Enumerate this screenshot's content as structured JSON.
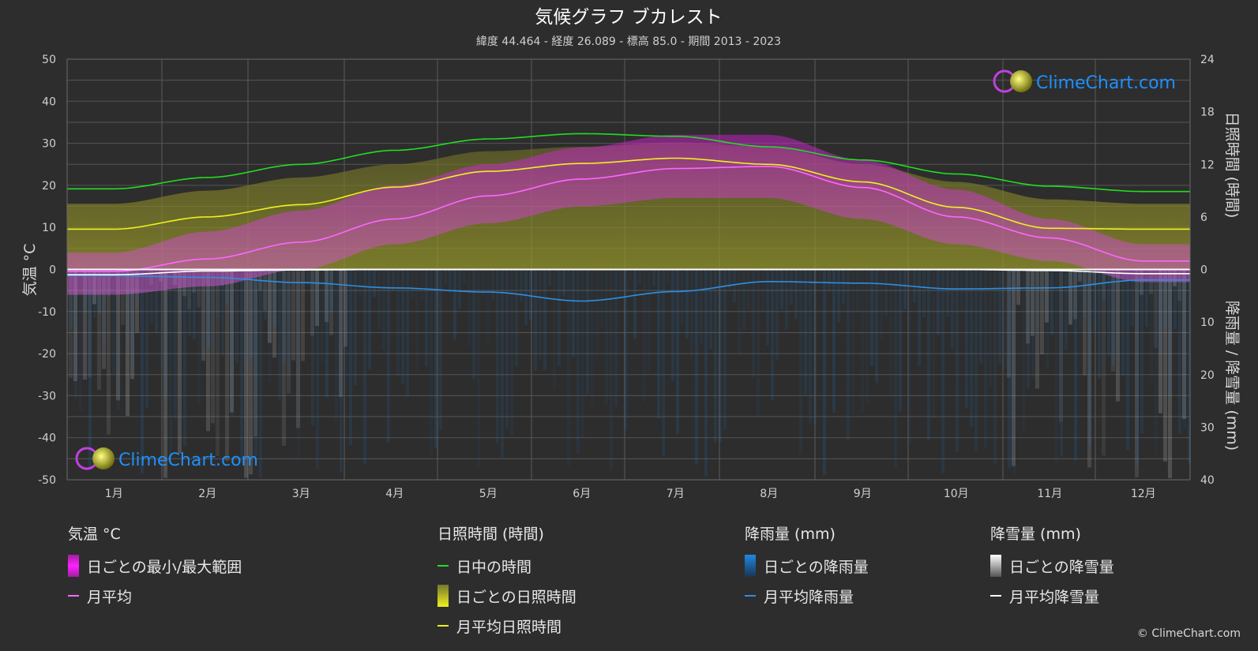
{
  "title": "気候グラフ ブカレスト",
  "subtitle": "緯度 44.464 - 経度 26.089 - 標高 85.0 - 期間 2013 - 2023",
  "brand": "ClimeChart.com",
  "copyright": "© ClimeChart.com",
  "colors": {
    "background": "#2d2d2d",
    "temp_range": "#d020d0",
    "temp_mean": "#ff66ff",
    "daylight": "#22dd22",
    "sunshine_bar": "#a8a830",
    "sunshine_mean": "#f0f020",
    "rain": "#1e78c8",
    "rain_mean": "#2f8ee0",
    "snow": "#b0b0b0",
    "snow_mean": "#ffffff",
    "brand_text": "#1e90ff"
  },
  "legend": {
    "temperature": {
      "heading": "気温 °C",
      "range": "日ごとの最小/最大範囲",
      "mean": "月平均"
    },
    "sunshine": {
      "heading": "日照時間 (時間)",
      "daylight": "日中の時間",
      "daily": "日ごとの日照時間",
      "mean": "月平均日照時間"
    },
    "rain": {
      "heading": "降雨量 (mm)",
      "daily": "日ごとの降雨量",
      "mean": "月平均降雨量"
    },
    "snow": {
      "heading": "降雪量 (mm)",
      "daily": "日ごとの降雪量",
      "mean": "月平均降雪量"
    }
  },
  "chart_data": {
    "type": "line",
    "title": "気候グラフ ブカレスト",
    "categories": [
      "1月",
      "2月",
      "3月",
      "4月",
      "5月",
      "6月",
      "7月",
      "8月",
      "9月",
      "10月",
      "11月",
      "12月"
    ],
    "y_left": {
      "label": "気温 °C",
      "ticks": [
        50,
        40,
        30,
        20,
        10,
        0,
        -10,
        -20,
        -30,
        -40,
        -50
      ],
      "range": [
        -50,
        50
      ]
    },
    "y_right_top": {
      "label": "日照時間 (時間)",
      "ticks": [
        24,
        18,
        12,
        6,
        0
      ],
      "range": [
        0,
        24
      ]
    },
    "y_right_bottom": {
      "label": "降雨量 / 降雪量 (mm)",
      "ticks": [
        0,
        10,
        20,
        30,
        40
      ],
      "range": [
        0,
        40
      ]
    },
    "grid": true,
    "series": [
      {
        "name": "月平均",
        "axis": "temperature",
        "values": [
          -0.5,
          2.5,
          6.5,
          12,
          17.5,
          21.5,
          24,
          24.5,
          19.5,
          12.5,
          7.5,
          2
        ]
      },
      {
        "name": "日中の時間",
        "axis": "sunshine",
        "values": [
          9.2,
          10.5,
          12,
          13.6,
          14.9,
          15.5,
          15.2,
          14,
          12.5,
          10.9,
          9.5,
          8.9
        ]
      },
      {
        "name": "月平均日照時間",
        "axis": "sunshine",
        "values": [
          4.6,
          6,
          7.4,
          9.4,
          11.2,
          12.1,
          12.7,
          12,
          10,
          7.1,
          4.7,
          4.6
        ]
      },
      {
        "name": "月平均降雨量",
        "axis": "precipitation",
        "values": [
          1.2,
          1.5,
          2.5,
          3.5,
          4.3,
          6,
          4.2,
          2.3,
          2.6,
          3.7,
          3.5,
          2
        ]
      },
      {
        "name": "月平均降雪量",
        "axis": "precipitation",
        "values": [
          1,
          0.3,
          0.1,
          0,
          0,
          0,
          0,
          0,
          0,
          0,
          0.2,
          0.8
        ]
      }
    ],
    "temperature_range": {
      "name": "日ごとの最小/最大範囲",
      "min": [
        -6,
        -4,
        0,
        6,
        11,
        15,
        17,
        17,
        12,
        6,
        2,
        -3
      ],
      "max": [
        4,
        9,
        14,
        20,
        25,
        29,
        32,
        32,
        26,
        19,
        12,
        6
      ]
    },
    "daily_sunshine_envelope": {
      "name": "日ごとの日照時間",
      "values": [
        7.5,
        9,
        10.5,
        12,
        13.5,
        14,
        14.5,
        14,
        12,
        10,
        8,
        7.5
      ]
    }
  }
}
